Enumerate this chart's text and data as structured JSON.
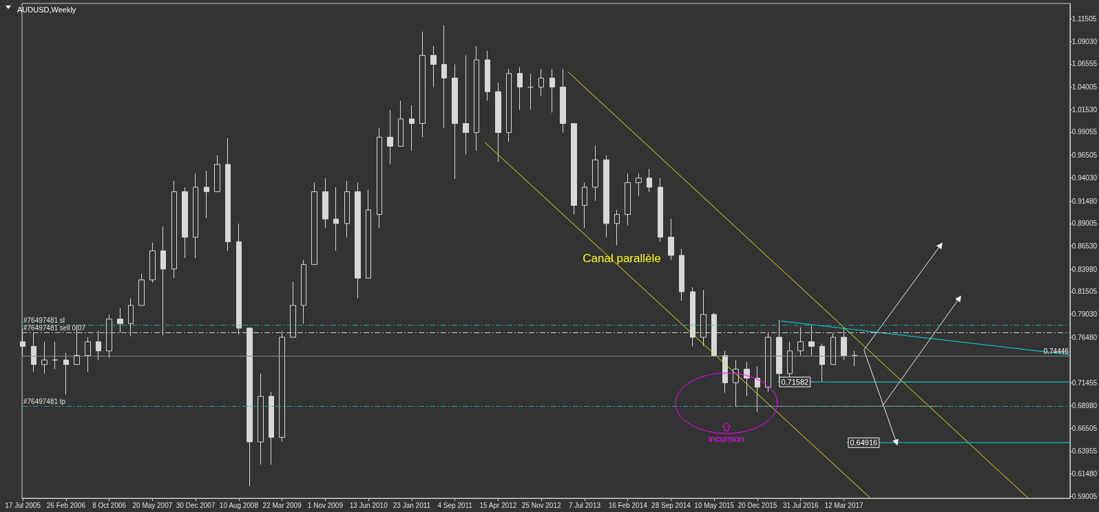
{
  "chart_data": {
    "type": "candlestick",
    "title": "AUDUSD,Weekly",
    "color": "#d8d8d8",
    "x": [
      "2005-07-17",
      "2005-09-11",
      "2005-11-06",
      "2006-01-01",
      "2006-02-26",
      "2006-04-23",
      "2006-06-18",
      "2006-08-13",
      "2006-10-08",
      "2006-12-03",
      "2007-01-28",
      "2007-03-25",
      "2007-05-20",
      "2007-07-15",
      "2007-09-09",
      "2007-11-04",
      "2007-12-30",
      "2008-02-24",
      "2008-04-20",
      "2008-06-15",
      "2008-08-10",
      "2008-10-05",
      "2008-11-30",
      "2009-01-25",
      "2009-03-22",
      "2009-05-17",
      "2009-07-12",
      "2009-09-06",
      "2009-11-01",
      "2009-12-27",
      "2010-02-21",
      "2010-04-18",
      "2010-06-13",
      "2010-08-08",
      "2010-10-03",
      "2010-11-28",
      "2011-01-23",
      "2011-03-20",
      "2011-05-15",
      "2011-07-10",
      "2011-09-04",
      "2011-10-30",
      "2011-12-25",
      "2012-02-19",
      "2012-04-15",
      "2012-06-10",
      "2012-08-05",
      "2012-09-30",
      "2012-11-25",
      "2013-01-20",
      "2013-03-17",
      "2013-05-12",
      "2013-07-07",
      "2013-09-01",
      "2013-10-27",
      "2013-12-22",
      "2014-02-16",
      "2014-04-13",
      "2014-06-08",
      "2014-08-03",
      "2014-09-28",
      "2014-11-23",
      "2015-01-18",
      "2015-03-15",
      "2015-05-10",
      "2015-07-05",
      "2015-08-30",
      "2015-10-25",
      "2015-12-20",
      "2016-02-14",
      "2016-04-10",
      "2016-06-05",
      "2016-07-31",
      "2016-09-25",
      "2016-11-20",
      "2017-01-15",
      "2017-03-12",
      "2017-05-07"
    ],
    "ohlc": [
      [
        0.76,
        0.775,
        0.745,
        0.755
      ],
      [
        0.755,
        0.77,
        0.727,
        0.735
      ],
      [
        0.735,
        0.76,
        0.725,
        0.74
      ],
      [
        0.74,
        0.76,
        0.73,
        0.74
      ],
      [
        0.74,
        0.748,
        0.702,
        0.735
      ],
      [
        0.735,
        0.779,
        0.735,
        0.745
      ],
      [
        0.745,
        0.765,
        0.727,
        0.76
      ],
      [
        0.76,
        0.772,
        0.74,
        0.75
      ],
      [
        0.75,
        0.79,
        0.742,
        0.785
      ],
      [
        0.785,
        0.797,
        0.77,
        0.78
      ],
      [
        0.78,
        0.808,
        0.766,
        0.8
      ],
      [
        0.8,
        0.835,
        0.8,
        0.828
      ],
      [
        0.828,
        0.869,
        0.825,
        0.86
      ],
      [
        0.86,
        0.887,
        0.767,
        0.84
      ],
      [
        0.84,
        0.937,
        0.83,
        0.925
      ],
      [
        0.925,
        0.93,
        0.852,
        0.875
      ],
      [
        0.875,
        0.945,
        0.852,
        0.93
      ],
      [
        0.93,
        0.948,
        0.896,
        0.925
      ],
      [
        0.925,
        0.965,
        0.925,
        0.955
      ],
      [
        0.955,
        0.984,
        0.86,
        0.87
      ],
      [
        0.87,
        0.89,
        0.768,
        0.775
      ],
      [
        0.775,
        0.775,
        0.601,
        0.65
      ],
      [
        0.65,
        0.725,
        0.625,
        0.7
      ],
      [
        0.7,
        0.705,
        0.625,
        0.655
      ],
      [
        0.655,
        0.772,
        0.65,
        0.765
      ],
      [
        0.765,
        0.826,
        0.765,
        0.8
      ],
      [
        0.8,
        0.85,
        0.78,
        0.845
      ],
      [
        0.845,
        0.935,
        0.845,
        0.925
      ],
      [
        0.925,
        0.94,
        0.885,
        0.895
      ],
      [
        0.895,
        0.93,
        0.86,
        0.89
      ],
      [
        0.89,
        0.937,
        0.875,
        0.925
      ],
      [
        0.925,
        0.935,
        0.808,
        0.83
      ],
      [
        0.83,
        0.927,
        0.83,
        0.905
      ],
      [
        0.9,
        0.995,
        0.885,
        0.985
      ],
      [
        0.985,
        1.015,
        0.955,
        0.975
      ],
      [
        0.975,
        1.025,
        0.975,
        1.005
      ],
      [
        1.005,
        1.02,
        0.97,
        1.0
      ],
      [
        1.0,
        1.101,
        0.985,
        1.075
      ],
      [
        1.075,
        1.085,
        1.04,
        1.065
      ],
      [
        1.065,
        1.108,
        0.995,
        1.05
      ],
      [
        1.05,
        1.065,
        0.939,
        1.0
      ],
      [
        1.0,
        1.075,
        0.966,
        0.99
      ],
      [
        0.99,
        1.085,
        0.97,
        1.07
      ],
      [
        1.07,
        1.08,
        1.025,
        1.035
      ],
      [
        1.035,
        1.045,
        0.958,
        0.99
      ],
      [
        0.99,
        1.06,
        0.98,
        1.055
      ],
      [
        1.055,
        1.062,
        1.015,
        1.04
      ],
      [
        1.04,
        1.055,
        1.015,
        1.04
      ],
      [
        1.04,
        1.06,
        1.03,
        1.05
      ],
      [
        1.05,
        1.06,
        1.012,
        1.04
      ],
      [
        1.04,
        1.06,
        0.99,
        1.0
      ],
      [
        1.0,
        1.0,
        0.9,
        0.91
      ],
      [
        0.91,
        0.935,
        0.885,
        0.93
      ],
      [
        0.93,
        0.976,
        0.915,
        0.96
      ],
      [
        0.96,
        0.965,
        0.875,
        0.89
      ],
      [
        0.89,
        0.905,
        0.866,
        0.9
      ],
      [
        0.9,
        0.945,
        0.888,
        0.935
      ],
      [
        0.935,
        0.945,
        0.92,
        0.94
      ],
      [
        0.94,
        0.95,
        0.925,
        0.93
      ],
      [
        0.93,
        0.94,
        0.87,
        0.875
      ],
      [
        0.875,
        0.895,
        0.85,
        0.855
      ],
      [
        0.855,
        0.862,
        0.805,
        0.815
      ],
      [
        0.815,
        0.82,
        0.755,
        0.765
      ],
      [
        0.765,
        0.817,
        0.755,
        0.79
      ],
      [
        0.79,
        0.792,
        0.743,
        0.745
      ],
      [
        0.745,
        0.75,
        0.704,
        0.715
      ],
      [
        0.715,
        0.74,
        0.689,
        0.73
      ],
      [
        0.73,
        0.738,
        0.7,
        0.72
      ],
      [
        0.72,
        0.733,
        0.683,
        0.71
      ],
      [
        0.71,
        0.77,
        0.705,
        0.765
      ],
      [
        0.765,
        0.784,
        0.715,
        0.725
      ],
      [
        0.725,
        0.76,
        0.72,
        0.75
      ],
      [
        0.75,
        0.776,
        0.745,
        0.76
      ],
      [
        0.76,
        0.778,
        0.745,
        0.755
      ],
      [
        0.755,
        0.758,
        0.716,
        0.735
      ],
      [
        0.735,
        0.77,
        0.735,
        0.765
      ],
      [
        0.765,
        0.775,
        0.74,
        0.745
      ],
      [
        0.745,
        0.75,
        0.733,
        0.7445
      ]
    ],
    "xlim": [
      "2005-07-13",
      "2020-05-27"
    ],
    "xticks": [
      {
        "value": "2005-07-17",
        "label": "17 Jul 2005"
      },
      {
        "value": "2006-02-26",
        "label": "26 Feb 2006"
      },
      {
        "value": "2006-10-08",
        "label": "8 Oct 2006"
      },
      {
        "value": "2007-05-20",
        "label": "20 May 2007"
      },
      {
        "value": "2007-12-30",
        "label": "30 Dec 2007"
      },
      {
        "value": "2008-08-10",
        "label": "10 Aug 2008"
      },
      {
        "value": "2009-03-22",
        "label": "22 Mar 2009"
      },
      {
        "value": "2009-11-01",
        "label": "1 Nov 2009"
      },
      {
        "value": "2010-06-13",
        "label": "13 Jun 2010"
      },
      {
        "value": "2011-01-23",
        "label": "23 Jan 2011"
      },
      {
        "value": "2011-09-04",
        "label": "4 Sep 2011"
      },
      {
        "value": "2012-04-15",
        "label": "15 Apr 2012"
      },
      {
        "value": "2012-11-25",
        "label": "25 Nov 2012"
      },
      {
        "value": "2013-07-07",
        "label": "7 Jul 2013"
      },
      {
        "value": "2014-02-16",
        "label": "16 Feb 2014"
      },
      {
        "value": "2014-09-28",
        "label": "28 Sep 2014"
      },
      {
        "value": "2015-05-10",
        "label": "10 May 2015"
      },
      {
        "value": "2015-12-20",
        "label": "20 Dec 2015"
      },
      {
        "value": "2016-07-31",
        "label": "31 Jul 2016"
      },
      {
        "value": "2017-03-12",
        "label": "12 Mar 2017"
      }
    ],
    "ylim": [
      0.588,
      1.132
    ],
    "yticks": [
      {
        "value": 1.11505,
        "label": "1.11505"
      },
      {
        "value": 1.0903,
        "label": "1.09030"
      },
      {
        "value": 1.06555,
        "label": "1.06555"
      },
      {
        "value": 1.04005,
        "label": "1.04005"
      },
      {
        "value": 1.0153,
        "label": "1.01530"
      },
      {
        "value": 0.99055,
        "label": "0.99055"
      },
      {
        "value": 0.96505,
        "label": "0.96505"
      },
      {
        "value": 0.9403,
        "label": "0.94030"
      },
      {
        "value": 0.9148,
        "label": "0.91480"
      },
      {
        "value": 0.89005,
        "label": "0.89005"
      },
      {
        "value": 0.8653,
        "label": "0.86530"
      },
      {
        "value": 0.8398,
        "label": "0.83980"
      },
      {
        "value": 0.81505,
        "label": "0.81505"
      },
      {
        "value": 0.7903,
        "label": "0.79030"
      },
      {
        "value": 0.7648,
        "label": "0.76480"
      },
      {
        "value": 0.71455,
        "label": "0.71455"
      },
      {
        "value": 0.6898,
        "label": "0.68980"
      },
      {
        "value": 0.66505,
        "label": "0.66505"
      },
      {
        "value": 0.63955,
        "label": "0.63955"
      },
      {
        "value": 0.6148,
        "label": "0.61480"
      },
      {
        "value": 0.59005,
        "label": "0.59005"
      }
    ],
    "ref_lines": [
      {
        "axis": "y",
        "value": 0.7781,
        "label": "#76497481 sl",
        "color": "#20a0a0",
        "line_style": "dashed"
      },
      {
        "axis": "y",
        "value": 0.7703,
        "label": "#76497481 sell 0.07",
        "color": "#d0d0d0",
        "line_style": "dashed"
      },
      {
        "axis": "y",
        "value": 0.6892,
        "label": "#76497481 tp",
        "color": "#20a0a0",
        "line_style": "dashed"
      },
      {
        "axis": "y",
        "value": 0.74446,
        "label": "0.74446",
        "color": "#8c8c8c",
        "line_style": "solid"
      }
    ],
    "annotations": [
      "Canal parallèle",
      "incursion"
    ],
    "series": [
      {
        "type": "line",
        "color": "#e6e600",
        "x": [
          "2013-04-11",
          "2019-10-22"
        ],
        "values": [
          1.057,
          0.5884
        ]
      },
      {
        "type": "line",
        "color": "#e6e600",
        "x": [
          "2012-02-06",
          "2017-07-26"
        ],
        "values": [
          0.9792,
          0.5884
        ]
      },
      {
        "type": "line",
        "color": "#00e0e8",
        "x": [
          "2016-04-20",
          "2020-05-27"
        ],
        "values": [
          0.7828,
          0.7458
        ]
      },
      {
        "type": "line",
        "color": "#00e0e8",
        "x": [
          "2016-04-03",
          "2020-05-27"
        ],
        "values": [
          0.71582,
          0.71582
        ],
        "value_labels": [
          "0.71582",
          null
        ]
      },
      {
        "type": "line",
        "color": "#00e0e8",
        "x": [
          "2017-03-26",
          "2020-05-27"
        ],
        "values": [
          0.64916,
          0.64916
        ],
        "value_labels": [
          "0.64916",
          null
        ]
      },
      {
        "type": "line",
        "color": "#d2a679",
        "x": [
          "2015-08-30",
          "2018-08-05"
        ],
        "values": [
          0.6891,
          0.6891
        ]
      },
      {
        "type": "line",
        "color": "#f0f0f0",
        "marker": "triangle",
        "x": [
          "2017-06-24",
          "2017-12-10"
        ],
        "values": [
          0.7511,
          0.649
        ]
      },
      {
        "type": "line",
        "color": "#f0f0f0",
        "marker": "triangle",
        "x": [
          "2017-06-24",
          "2018-07-27"
        ],
        "values": [
          0.7511,
          0.8664
        ]
      },
      {
        "type": "line",
        "color": "#f0f0f0",
        "marker": "triangle",
        "x": [
          "2017-09-27",
          "2018-11-01"
        ],
        "values": [
          0.6892,
          0.8081
        ]
      }
    ]
  }
}
